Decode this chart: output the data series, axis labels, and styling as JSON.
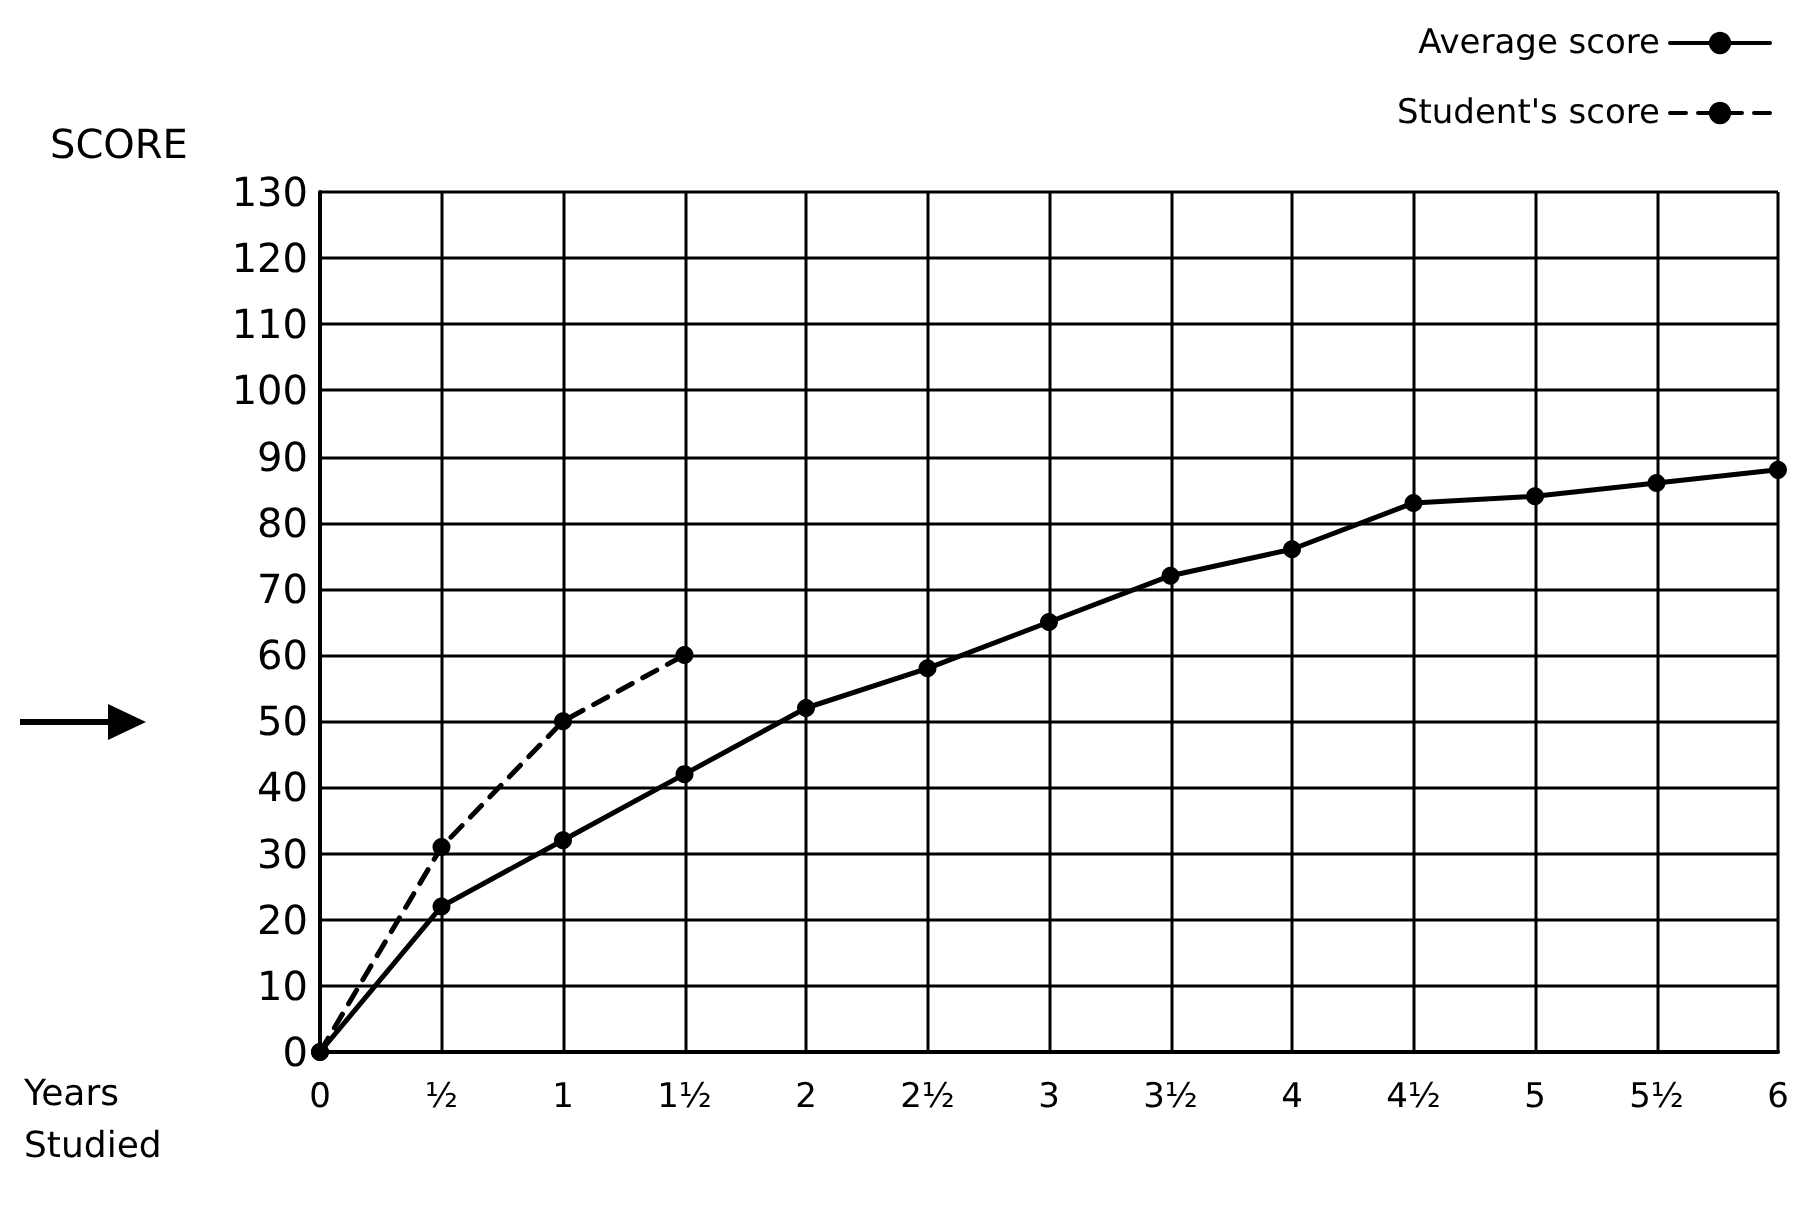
{
  "chart_data": {
    "type": "line",
    "ylabel": "SCORE",
    "xlabel": "Years Studied",
    "x": [
      0,
      0.5,
      1,
      1.5,
      2,
      2.5,
      3,
      3.5,
      4,
      4.5,
      5,
      5.5,
      6
    ],
    "series": [
      {
        "name": "Average score",
        "color": "#000000",
        "line_style": "solid",
        "values": [
          0,
          22,
          32,
          42,
          52,
          58,
          65,
          72,
          76,
          83,
          84,
          86,
          88
        ]
      },
      {
        "name": "Student's score",
        "color": "#000000",
        "line_style": "dashed",
        "x": [
          0,
          0.5,
          1,
          1.5
        ],
        "values": [
          0,
          31,
          50,
          60
        ]
      }
    ],
    "xlim": [
      0,
      6
    ],
    "xticks": [
      0,
      {
        "value": 0.5,
        "label": "½"
      },
      1,
      {
        "value": 1.5,
        "label": "1½"
      },
      2,
      {
        "value": 2.5,
        "label": "2½"
      },
      3,
      {
        "value": 3.5,
        "label": "3½"
      },
      4,
      {
        "value": 4.5,
        "label": "4½"
      },
      5,
      {
        "value": 5.5,
        "label": "5½"
      },
      6
    ],
    "ylim": [
      0,
      130
    ],
    "yticks": [
      0,
      10,
      20,
      30,
      40,
      50,
      60,
      70,
      80,
      90,
      100,
      110,
      120,
      130
    ],
    "grid": true,
    "legend": "top right",
    "marker": "circle"
  }
}
